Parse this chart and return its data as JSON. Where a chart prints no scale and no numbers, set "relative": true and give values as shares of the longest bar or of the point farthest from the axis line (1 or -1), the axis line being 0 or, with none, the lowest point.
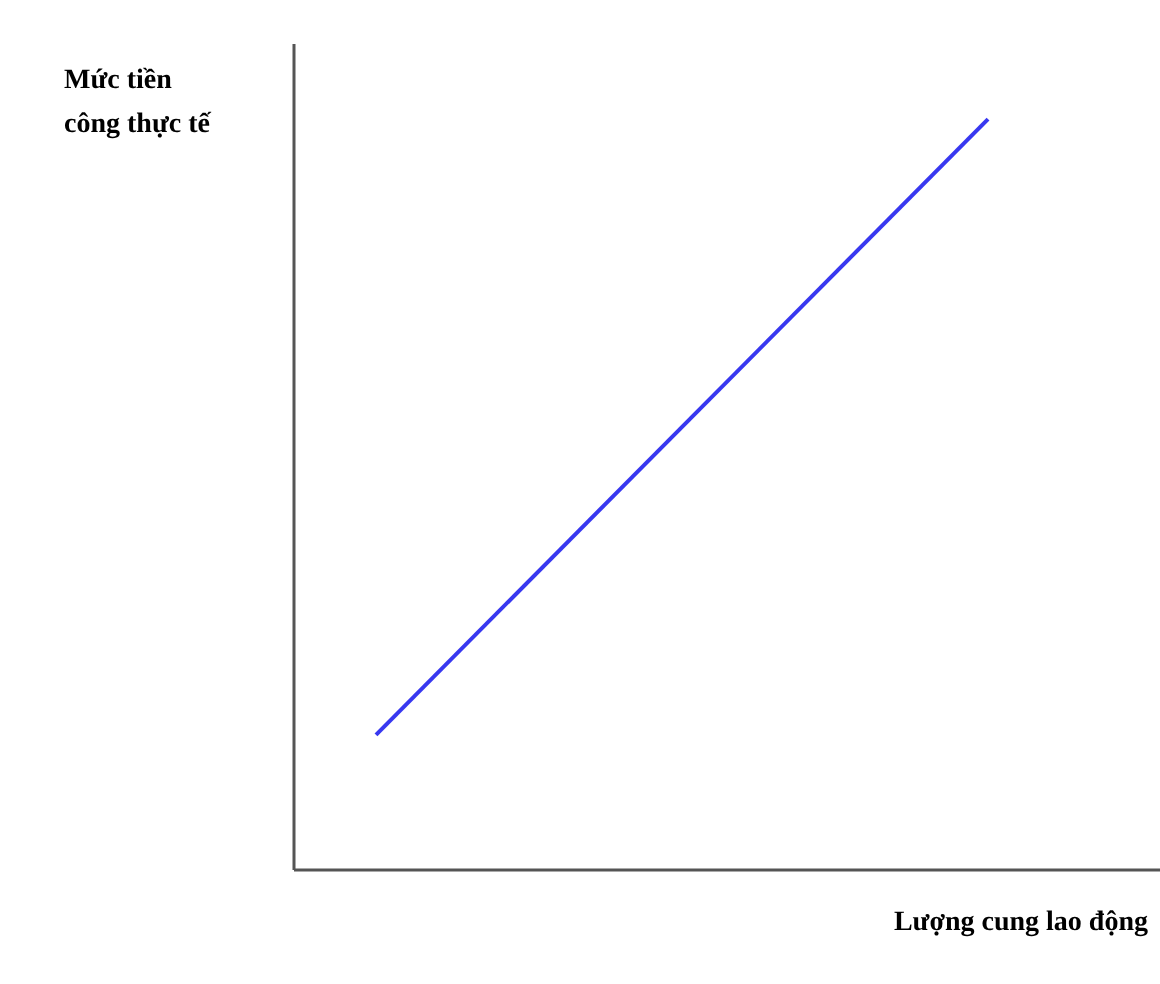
{
  "chart_data": {
    "type": "line",
    "relative": true,
    "ylabel": "Mức tiền công thực tế",
    "xlabel": "Lượng cung lao động",
    "categories": [
      null,
      null
    ],
    "series": [
      {
        "color": "#3838f0",
        "values": [
          0.18,
          1
        ]
      }
    ],
    "marker": "none",
    "line_style": "solid",
    "grid": false,
    "legend": false
  }
}
